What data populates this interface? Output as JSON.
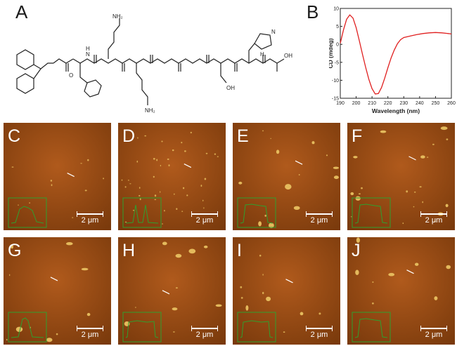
{
  "panels": {
    "a": "A",
    "b": "B",
    "afm": [
      {
        "id": "c",
        "letter": "C",
        "scale": "2 μm",
        "profile": "double-dome"
      },
      {
        "id": "d",
        "letter": "D",
        "scale": "2 μm",
        "profile": "twin-peak"
      },
      {
        "id": "e",
        "letter": "E",
        "scale": "2 μm",
        "profile": "plateau"
      },
      {
        "id": "f",
        "letter": "F",
        "scale": "2 μm",
        "profile": "plateau"
      },
      {
        "id": "g",
        "letter": "G",
        "scale": "2 μm",
        "profile": "single-peak"
      },
      {
        "id": "h",
        "letter": "H",
        "scale": "2 μm",
        "profile": "wide-plateau"
      },
      {
        "id": "i",
        "letter": "I",
        "scale": "2 μm",
        "profile": "wide-plateau"
      },
      {
        "id": "j",
        "letter": "J",
        "scale": "2 μm",
        "profile": "plateau"
      }
    ]
  },
  "structure": {
    "labels": {
      "nh2_top": "NH₂",
      "nh2_bottom": "NH₂",
      "nh_ring": "N",
      "h_ring": "H",
      "oh_ser": "OH",
      "oh_acid": "OH",
      "o": "O",
      "n": "N",
      "h": "H"
    }
  },
  "chart_data": {
    "type": "line",
    "xlabel": "Wavelength (nm)",
    "ylabel": "CD (mdeg)",
    "xlim": [
      190,
      260
    ],
    "ylim": [
      -15,
      10
    ],
    "xticks": [
      190,
      200,
      210,
      220,
      230,
      240,
      250,
      260
    ],
    "yticks": [
      10,
      5,
      0,
      -5,
      -10,
      -15
    ],
    "grid": false,
    "series": [
      {
        "color": "#e02020",
        "x": [
          190,
          192,
          194,
          196,
          198,
          200,
          202,
          204,
          206,
          208,
          210,
          212,
          214,
          216,
          218,
          220,
          222,
          224,
          226,
          228,
          230,
          234,
          238,
          242,
          246,
          250,
          254,
          258,
          260
        ],
        "y": [
          0.3,
          4.0,
          7.0,
          8.2,
          7.3,
          4.6,
          1.0,
          -2.8,
          -6.4,
          -9.7,
          -12.3,
          -13.8,
          -13.7,
          -12.0,
          -9.4,
          -6.5,
          -3.8,
          -1.6,
          0.2,
          1.3,
          1.9,
          2.3,
          2.7,
          3.0,
          3.2,
          3.3,
          3.2,
          3.0,
          2.9
        ]
      }
    ]
  },
  "colors": {
    "afm_bg": "#b05a1c",
    "afm_dark": "#7a3a0c",
    "particle": "#e8c060",
    "inset": "#2fa02f",
    "cd_line": "#e02020"
  }
}
